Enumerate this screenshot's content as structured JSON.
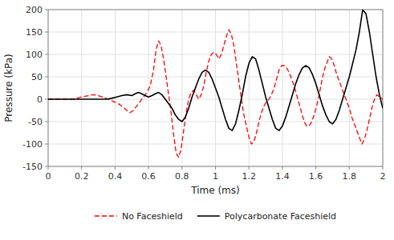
{
  "chart_data": {
    "type": "line",
    "xlabel": "Time (ms)",
    "ylabel": "Pressure (kPa)",
    "xlim": [
      0,
      2.0
    ],
    "ylim": [
      -150,
      200
    ],
    "xticks": [
      0,
      0.2,
      0.4,
      0.6,
      0.8,
      1,
      1.2,
      1.4,
      1.6,
      1.8,
      2
    ],
    "yticks": [
      -150,
      -100,
      -50,
      0,
      50,
      100,
      150,
      200
    ],
    "grid": true,
    "legend": "bottom",
    "series": [
      {
        "name": "No Faceshield",
        "color": "#ff0000",
        "line_style": "dashed",
        "x": [
          0.0,
          0.05,
          0.1,
          0.15,
          0.2,
          0.24,
          0.27,
          0.3,
          0.33,
          0.36,
          0.39,
          0.42,
          0.45,
          0.47,
          0.49,
          0.51,
          0.53,
          0.55,
          0.57,
          0.59,
          0.61,
          0.63,
          0.645,
          0.66,
          0.675,
          0.69,
          0.705,
          0.72,
          0.735,
          0.75,
          0.765,
          0.78,
          0.795,
          0.81,
          0.825,
          0.84,
          0.855,
          0.87,
          0.885,
          0.9,
          0.915,
          0.93,
          0.945,
          0.96,
          0.975,
          0.99,
          1.005,
          1.02,
          1.035,
          1.05,
          1.065,
          1.08,
          1.095,
          1.11,
          1.125,
          1.14,
          1.155,
          1.17,
          1.185,
          1.2,
          1.215,
          1.23,
          1.245,
          1.26,
          1.275,
          1.29,
          1.305,
          1.32,
          1.335,
          1.35,
          1.365,
          1.38,
          1.395,
          1.41,
          1.425,
          1.44,
          1.455,
          1.47,
          1.485,
          1.5,
          1.515,
          1.53,
          1.545,
          1.56,
          1.575,
          1.59,
          1.605,
          1.62,
          1.635,
          1.65,
          1.665,
          1.68,
          1.695,
          1.71,
          1.725,
          1.74,
          1.755,
          1.77,
          1.785,
          1.8,
          1.815,
          1.83,
          1.845,
          1.86,
          1.875,
          1.89,
          1.905,
          1.92,
          1.935,
          1.95,
          1.965,
          1.98,
          2.0
        ],
        "values": [
          0.0,
          0.0,
          0.0,
          0.0,
          5.0,
          8.0,
          10.0,
          8.0,
          4.0,
          0.0,
          -5.0,
          -10.0,
          -18.0,
          -25.0,
          -30.0,
          -25.0,
          -15.0,
          -5.0,
          5.0,
          15.0,
          30.0,
          65.0,
          110.0,
          130.0,
          120.0,
          90.0,
          50.0,
          10.0,
          -30.0,
          -80.0,
          -120.0,
          -130.0,
          -110.0,
          -70.0,
          -30.0,
          0.0,
          15.0,
          20.0,
          10.0,
          0.0,
          10.0,
          30.0,
          60.0,
          85.0,
          100.0,
          105.0,
          100.0,
          90.0,
          100.0,
          120.0,
          140.0,
          155.0,
          145.0,
          120.0,
          80.0,
          40.0,
          0.0,
          -35.0,
          -60.0,
          -85.0,
          -100.0,
          -95.0,
          -75.0,
          -50.0,
          -30.0,
          -15.0,
          -5.0,
          0.0,
          10.0,
          25.0,
          45.0,
          65.0,
          75.0,
          75.0,
          70.0,
          60.0,
          45.0,
          30.0,
          10.0,
          -10.0,
          -30.0,
          -50.0,
          -60.0,
          -60.0,
          -50.0,
          -35.0,
          -15.0,
          10.0,
          40.0,
          65.0,
          80.0,
          95.0,
          90.0,
          75.0,
          55.0,
          40.0,
          25.0,
          10.0,
          -5.0,
          -20.0,
          -40.0,
          -55.0,
          -70.0,
          -85.0,
          -100.0,
          -90.0,
          -70.0,
          -45.0,
          -20.0,
          0.0,
          10.0,
          5.0,
          0.0
        ]
      },
      {
        "name": "Polycarbonate Faceshield",
        "color": "#000000",
        "line_style": "solid",
        "x": [
          0.0,
          0.05,
          0.1,
          0.15,
          0.2,
          0.25,
          0.3,
          0.35,
          0.38,
          0.41,
          0.44,
          0.47,
          0.5,
          0.52,
          0.54,
          0.56,
          0.58,
          0.6,
          0.62,
          0.64,
          0.66,
          0.68,
          0.7,
          0.72,
          0.74,
          0.76,
          0.78,
          0.8,
          0.82,
          0.84,
          0.86,
          0.88,
          0.9,
          0.92,
          0.94,
          0.96,
          0.98,
          1.0,
          1.02,
          1.04,
          1.06,
          1.08,
          1.1,
          1.12,
          1.14,
          1.16,
          1.18,
          1.2,
          1.22,
          1.24,
          1.26,
          1.28,
          1.3,
          1.32,
          1.34,
          1.36,
          1.38,
          1.4,
          1.42,
          1.44,
          1.46,
          1.48,
          1.5,
          1.52,
          1.54,
          1.56,
          1.58,
          1.6,
          1.62,
          1.64,
          1.66,
          1.68,
          1.7,
          1.72,
          1.74,
          1.76,
          1.78,
          1.8,
          1.82,
          1.84,
          1.86,
          1.88,
          1.9,
          1.92,
          1.94,
          1.96,
          1.98,
          2.0
        ],
        "values": [
          0.0,
          0.0,
          0.0,
          0.0,
          0.0,
          0.0,
          0.0,
          0.0,
          2.0,
          5.0,
          8.0,
          10.0,
          8.0,
          12.0,
          15.0,
          12.0,
          8.0,
          5.0,
          8.0,
          12.0,
          15.0,
          10.0,
          0.0,
          -10.0,
          -20.0,
          -35.0,
          -45.0,
          -50.0,
          -40.0,
          -20.0,
          5.0,
          25.0,
          45.0,
          60.0,
          65.0,
          60.0,
          45.0,
          25.0,
          5.0,
          -20.0,
          -45.0,
          -65.0,
          -70.0,
          -55.0,
          -25.0,
          10.0,
          50.0,
          80.0,
          95.0,
          90.0,
          65.0,
          35.0,
          5.0,
          -20.0,
          -45.0,
          -65.0,
          -70.0,
          -60.0,
          -40.0,
          -15.0,
          10.0,
          35.0,
          55.0,
          70.0,
          75.0,
          70.0,
          55.0,
          35.0,
          10.0,
          -15.0,
          -35.0,
          -50.0,
          -55.0,
          -45.0,
          -25.0,
          0.0,
          25.0,
          50.0,
          80.0,
          110.0,
          150.0,
          200.0,
          190.0,
          150.0,
          100.0,
          50.0,
          10.0,
          -20.0
        ]
      }
    ]
  }
}
